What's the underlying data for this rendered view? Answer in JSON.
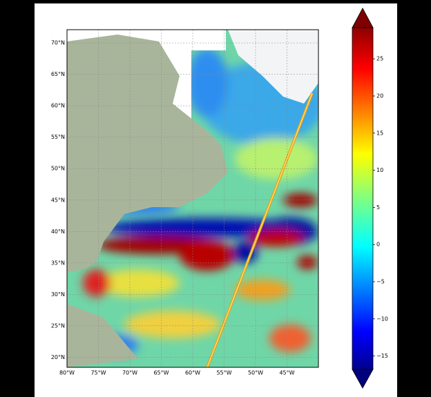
{
  "map": {
    "xlim": [
      -80,
      -40
    ],
    "ylim": [
      18.4,
      72.1
    ],
    "lat_ticks": [
      {
        "value": 70,
        "label": "70°N"
      },
      {
        "value": 65,
        "label": "65°N"
      },
      {
        "value": 60,
        "label": "60°N"
      },
      {
        "value": 55,
        "label": "55°N"
      },
      {
        "value": 50,
        "label": "50°N"
      },
      {
        "value": 45,
        "label": "45°N"
      },
      {
        "value": 40,
        "label": "40°N"
      },
      {
        "value": 35,
        "label": "35°N"
      },
      {
        "value": 30,
        "label": "30°N"
      },
      {
        "value": 25,
        "label": "25°N"
      },
      {
        "value": 20,
        "label": "20°N"
      }
    ],
    "lon_ticks": [
      {
        "value": -80,
        "label": "80°W"
      },
      {
        "value": -75,
        "label": "75°W"
      },
      {
        "value": -70,
        "label": "70°W"
      },
      {
        "value": -65,
        "label": "65°W"
      },
      {
        "value": -60,
        "label": "60°W"
      },
      {
        "value": -55,
        "label": "55°W"
      },
      {
        "value": -50,
        "label": "50°W"
      },
      {
        "value": -45,
        "label": "45°W"
      }
    ],
    "grid": true
  },
  "colorbar": {
    "clim": [
      -16.8,
      29.2
    ],
    "colormap": "jet",
    "extend": "both",
    "ticks": [
      {
        "value": -15,
        "label": "−15"
      },
      {
        "value": -10,
        "label": "−10"
      },
      {
        "value": -5,
        "label": "−5"
      },
      0,
      5,
      10,
      15,
      20,
      25
    ]
  }
}
